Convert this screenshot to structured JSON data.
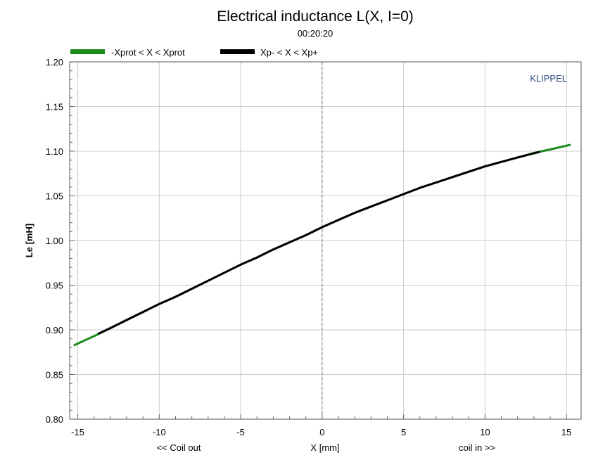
{
  "chart_data": {
    "type": "line",
    "title": "Electrical inductance L(X, I=0)",
    "subtitle": "00:20:20",
    "brand": "KLIPPEL",
    "xlabel": "X [mm]",
    "xlabel_left": "<< Coil out",
    "xlabel_right": "coil in >>",
    "ylabel": "Le [mH]",
    "xlim": [
      -15.5,
      15.9
    ],
    "ylim": [
      0.8,
      1.2
    ],
    "x_ticks": [
      -15,
      -10,
      -5,
      0,
      5,
      10,
      15
    ],
    "y_ticks": [
      0.8,
      0.85,
      0.9,
      0.95,
      1.0,
      1.05,
      1.1,
      1.15,
      1.2
    ],
    "grid": true,
    "zero_line": "dashed",
    "legend_position": "top-left",
    "series": [
      {
        "name": "-Xprot < X < Xprot",
        "color": "#1a8a1a",
        "x": [
          -15.2,
          -14,
          -13,
          -12,
          -11,
          -10,
          -9,
          -8,
          -7,
          -6,
          -5,
          -4,
          -3,
          -2,
          -1,
          0,
          1,
          2,
          3,
          4,
          5,
          6,
          7,
          8,
          9,
          10,
          11,
          12,
          13,
          14,
          15.2
        ],
        "y": [
          0.883,
          0.893,
          0.902,
          0.911,
          0.92,
          0.929,
          0.937,
          0.946,
          0.955,
          0.964,
          0.973,
          0.981,
          0.99,
          0.998,
          1.006,
          1.015,
          1.023,
          1.031,
          1.038,
          1.045,
          1.052,
          1.059,
          1.065,
          1.071,
          1.077,
          1.083,
          1.088,
          1.093,
          1.098,
          1.102,
          1.107
        ]
      },
      {
        "name": "Xp- < X < Xp+",
        "color": "#000000",
        "x": [
          -13.7,
          -13,
          -12,
          -11,
          -10,
          -9,
          -8,
          -7,
          -6,
          -5,
          -4,
          -3,
          -2,
          -1,
          0,
          1,
          2,
          3,
          4,
          5,
          6,
          7,
          8,
          9,
          10,
          11,
          12,
          13.3
        ],
        "y": [
          0.896,
          0.902,
          0.911,
          0.92,
          0.929,
          0.937,
          0.946,
          0.955,
          0.964,
          0.973,
          0.981,
          0.99,
          0.998,
          1.006,
          1.015,
          1.023,
          1.031,
          1.038,
          1.045,
          1.052,
          1.059,
          1.065,
          1.071,
          1.077,
          1.083,
          1.088,
          1.093,
          1.099
        ]
      }
    ]
  }
}
